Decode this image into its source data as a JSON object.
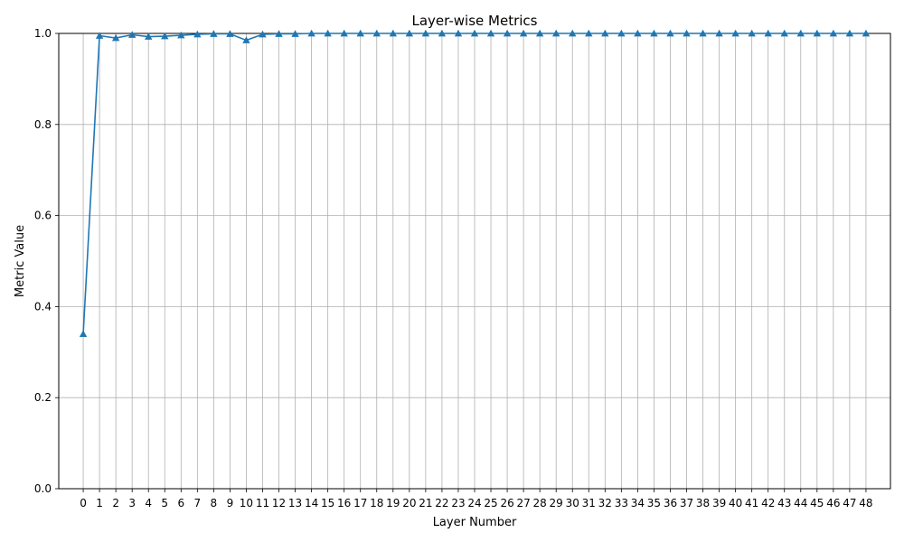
{
  "chart_data": {
    "type": "line",
    "title": "Layer-wise Metrics",
    "xlabel": "Layer Number",
    "ylabel": "Metric Value",
    "ylim": [
      0.0,
      1.0
    ],
    "xlim": [
      -1.5,
      49.5
    ],
    "grid": true,
    "marker": "triangle-up",
    "line_color": "#1f77b4",
    "grid_color": "#b0b0b0",
    "x": [
      0,
      1,
      2,
      3,
      4,
      5,
      6,
      7,
      8,
      9,
      10,
      11,
      12,
      13,
      14,
      15,
      16,
      17,
      18,
      19,
      20,
      21,
      22,
      23,
      24,
      25,
      26,
      27,
      28,
      29,
      30,
      31,
      32,
      33,
      34,
      35,
      36,
      37,
      38,
      39,
      40,
      41,
      42,
      43,
      44,
      45,
      46,
      47,
      48
    ],
    "x_tick_labels": [
      "0",
      "1",
      "2",
      "3",
      "4",
      "5",
      "6",
      "7",
      "8",
      "9",
      "10",
      "11",
      "12",
      "13",
      "14",
      "15",
      "16",
      "17",
      "18",
      "19",
      "20",
      "21",
      "22",
      "23",
      "24",
      "25",
      "26",
      "27",
      "28",
      "29",
      "30",
      "31",
      "32",
      "33",
      "34",
      "35",
      "36",
      "37",
      "38",
      "39",
      "40",
      "41",
      "42",
      "43",
      "44",
      "45",
      "46",
      "47",
      "48"
    ],
    "y_ticks": [
      0.0,
      0.2,
      0.4,
      0.6,
      0.8,
      1.0
    ],
    "y_tick_labels": [
      "0.0",
      "0.2",
      "0.4",
      "0.6",
      "0.8",
      "1.0"
    ],
    "series": [
      {
        "values": [
          0.34,
          0.995,
          0.99,
          0.997,
          0.993,
          0.994,
          0.996,
          0.998,
          0.999,
          0.999,
          0.985,
          0.998,
          0.999,
          0.999,
          1.0,
          1.0,
          1.0,
          1.0,
          1.0,
          1.0,
          1.0,
          1.0,
          1.0,
          1.0,
          1.0,
          1.0,
          1.0,
          1.0,
          1.0,
          1.0,
          1.0,
          1.0,
          1.0,
          1.0,
          1.0,
          1.0,
          1.0,
          1.0,
          1.0,
          1.0,
          1.0,
          1.0,
          1.0,
          1.0,
          1.0,
          1.0,
          1.0,
          1.0,
          1.0
        ]
      }
    ]
  }
}
